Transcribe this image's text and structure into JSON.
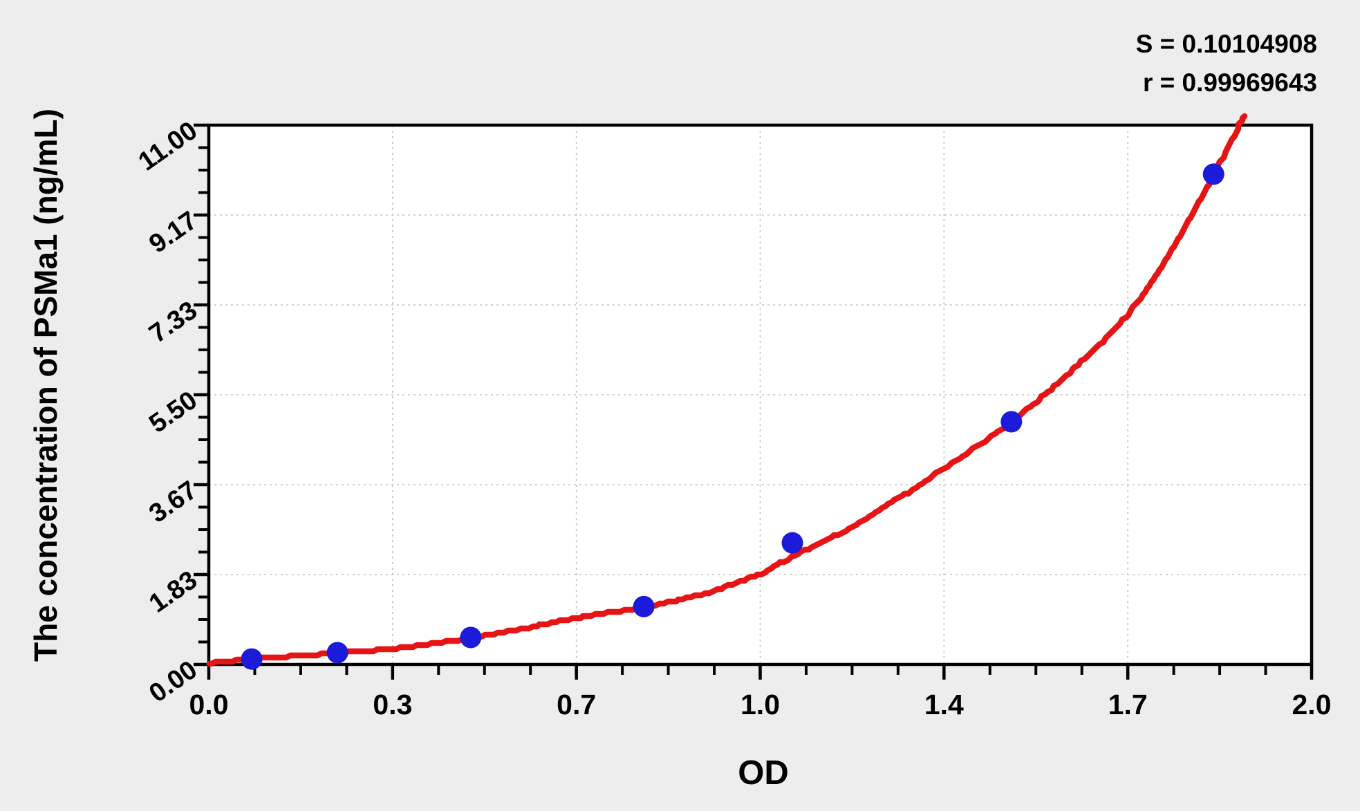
{
  "figure": {
    "kind": "standard-curve-plot",
    "background_color": "#ededed",
    "plot_background_color": "#ffffff"
  },
  "chart_data": {
    "type": "scatter",
    "title": "",
    "xlabel": "OD",
    "ylabel": "The concentration of PSMa1 (ng/mL)",
    "stats": {
      "s_text": "S = 0.10104908",
      "r_text": "r = 0.99969643",
      "S": "0.10104908",
      "r": "0.99969643"
    },
    "x_axis": {
      "tick_labels": [
        "0.0",
        "0.3",
        "0.7",
        "1.0",
        "1.4",
        "1.7",
        "2.0"
      ],
      "tick_values": [
        0.0,
        0.3,
        0.7,
        1.0,
        1.4,
        1.7,
        2.0
      ],
      "minor_ticks_between_majors": 3,
      "lim": [
        0.0,
        2.0
      ],
      "note": "major ticks evenly spaced although values are uneven"
    },
    "y_axis": {
      "tick_labels": [
        "0.00",
        "1.83",
        "3.67",
        "5.50",
        "7.33",
        "9.17",
        "11.00"
      ],
      "tick_values": [
        0.0,
        1.83,
        3.67,
        5.5,
        7.33,
        9.17,
        11.0
      ],
      "minor_ticks_between_majors": 3,
      "lim": [
        0.0,
        11.0
      ]
    },
    "grid": {
      "shown": true,
      "style": "dashed",
      "at_x_ticks": [
        0.3,
        0.7,
        1.0,
        1.4,
        1.7
      ],
      "at_y_ticks": [
        1.83,
        3.67,
        5.5,
        7.33,
        9.17
      ]
    },
    "legend": {
      "shown": false
    },
    "points": [
      {
        "od": 0.07,
        "conc": 0.11
      },
      {
        "od": 0.21,
        "conc": 0.24
      },
      {
        "od": 0.47,
        "conc": 0.55
      },
      {
        "od": 0.81,
        "conc": 1.18
      },
      {
        "od": 1.07,
        "conc": 2.48
      },
      {
        "od": 1.51,
        "conc": 4.95
      },
      {
        "od": 1.84,
        "conc": 10.0
      }
    ],
    "fit_curve": [
      [
        0.0,
        0.03
      ],
      [
        0.04,
        0.07
      ],
      [
        0.07,
        0.11
      ],
      [
        0.14,
        0.17
      ],
      [
        0.21,
        0.23
      ],
      [
        0.3,
        0.32
      ],
      [
        0.39,
        0.43
      ],
      [
        0.47,
        0.54
      ],
      [
        0.58,
        0.72
      ],
      [
        0.7,
        0.95
      ],
      [
        0.81,
        1.17
      ],
      [
        0.91,
        1.45
      ],
      [
        1.0,
        1.85
      ],
      [
        1.07,
        2.2
      ],
      [
        1.2,
        2.8
      ],
      [
        1.3,
        3.38
      ],
      [
        1.4,
        4.0
      ],
      [
        1.51,
        4.95
      ],
      [
        1.6,
        5.9
      ],
      [
        1.7,
        7.14
      ],
      [
        1.77,
        8.4
      ],
      [
        1.84,
        10.0
      ],
      [
        1.89,
        11.2
      ]
    ],
    "colors": {
      "point": "#1b1bd9",
      "curve": "#e61414",
      "frame": "#000000",
      "grid": "#c4c4c4",
      "text": "#000000"
    }
  }
}
